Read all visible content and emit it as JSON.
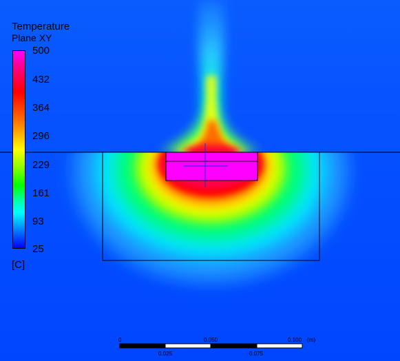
{
  "legend": {
    "title": "Temperature",
    "subtitle": "Plane XY",
    "ticks": [
      "500",
      "432",
      "364",
      "296",
      "229",
      "161",
      "93",
      "25"
    ],
    "unit": "[C]"
  },
  "scale_bar": {
    "top_labels": [
      "0",
      "0.050",
      "0.100",
      "(m)"
    ],
    "bottom_labels": [
      "0.025",
      "0.075"
    ]
  },
  "colors": {
    "background": "#0050ff",
    "max": "#ff00ff",
    "min": "#0000ff"
  }
}
